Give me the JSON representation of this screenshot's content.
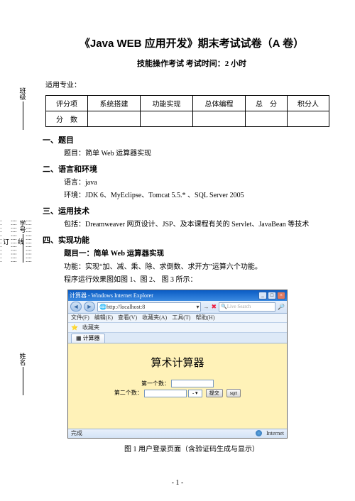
{
  "doc": {
    "title": "《Java WEB 应用开发》期末考试试卷（A 卷）",
    "subtitle": "技能操作考试  考试时间：2 小时",
    "applicable": "适用专业：",
    "page_number": "- 1 -"
  },
  "binding": {
    "dots": "┊┊┊┊┊┊┊┊┊┊┊┊",
    "seal": "装",
    "fold": "订",
    "line": "线"
  },
  "side_labels": {
    "class": "班级",
    "id": "学号",
    "name": "姓名"
  },
  "score_table": {
    "headers": [
      "评分项",
      "系统搭建",
      "功能实现",
      "总体编程",
      "总　分",
      "积分人"
    ],
    "row2_label": "分　数"
  },
  "sections": {
    "s1": {
      "head": "一、题目",
      "body": "题目：简单 Web 运算器实现"
    },
    "s2": {
      "head": "二、语言和环境",
      "line1": "语言：java",
      "line2": "环境：JDK 6、MyEclipse、Tomcat 5.5.* 、SQL Server 2005"
    },
    "s3": {
      "head": "三、运用技术",
      "body": "包括：Dreamweaver 网页设计、JSP、及本课程有关的 Servlet、JavaBean 等技术"
    },
    "s4": {
      "head": "四、实现功能",
      "title": "题目一：简单 Web 运算器实现",
      "desc": "功能：实现“加、减、乘、除、求倒数、求开方”运算六个功能。",
      "figs": "程序运行效果图如图 1、图 2、 图 3 所示："
    }
  },
  "ie_window": {
    "title": "计算器 - Windows Internet Explorer",
    "address": "http://localhost:8",
    "search_placeholder": "Live Search",
    "menu": [
      "文件(F)",
      "编辑(E)",
      "查看(V)",
      "收藏夹(A)",
      "工具(T)",
      "帮助(H)"
    ],
    "fav": "收藏夹",
    "tab": "计算器",
    "page_title": "算术计算器",
    "label1": "第一个数：",
    "label2": "第二个数：",
    "select": "- ▾",
    "btn_submit": "提交",
    "btn_sqrt": "sqrt",
    "status_done": "完成",
    "status_zone": "Internet"
  },
  "caption": "图 1 用户登录页面（含验证码生成与显示）",
  "colors": {
    "page_bg": "#fff2b8",
    "ie_title_start": "#0a5bc4",
    "ie_title_end": "#3b8ae0",
    "toolbar_start": "#e8f0fb",
    "toolbar_end": "#d4e3f6"
  }
}
